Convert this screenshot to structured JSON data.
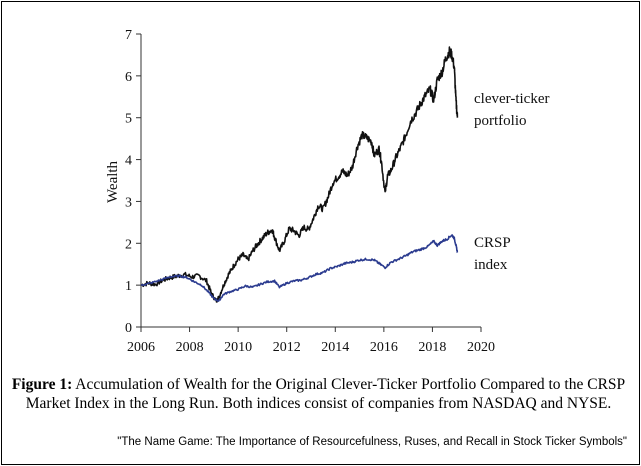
{
  "chart_data": {
    "type": "line",
    "ylabel": "Wealth",
    "xlabel": "",
    "xlim": [
      2006,
      2020
    ],
    "ylim": [
      0,
      7
    ],
    "x_ticks": [
      "2006",
      "2008",
      "2010",
      "2012",
      "2014",
      "2016",
      "2018",
      "2020"
    ],
    "y_ticks": [
      "0",
      "1",
      "2",
      "3",
      "4",
      "5",
      "6",
      "7"
    ],
    "grid": false,
    "legend": "inline labels at right end of each series",
    "series": [
      {
        "name": "clever-ticker portfolio",
        "color": "#111111",
        "points": [
          [
            2006.0,
            1.0
          ],
          [
            2006.3,
            1.05
          ],
          [
            2006.6,
            1.02
          ],
          [
            2006.9,
            1.12
          ],
          [
            2007.2,
            1.18
          ],
          [
            2007.5,
            1.22
          ],
          [
            2007.8,
            1.25
          ],
          [
            2008.1,
            1.2
          ],
          [
            2008.4,
            1.22
          ],
          [
            2008.7,
            1.1
          ],
          [
            2008.9,
            0.8
          ],
          [
            2009.1,
            0.62
          ],
          [
            2009.2,
            0.7
          ],
          [
            2009.4,
            1.0
          ],
          [
            2009.6,
            1.25
          ],
          [
            2009.8,
            1.45
          ],
          [
            2010.0,
            1.62
          ],
          [
            2010.2,
            1.72
          ],
          [
            2010.4,
            1.6
          ],
          [
            2010.6,
            1.82
          ],
          [
            2010.8,
            1.98
          ],
          [
            2011.0,
            2.12
          ],
          [
            2011.2,
            2.25
          ],
          [
            2011.4,
            2.32
          ],
          [
            2011.5,
            2.15
          ],
          [
            2011.7,
            1.82
          ],
          [
            2011.9,
            2.05
          ],
          [
            2012.1,
            2.35
          ],
          [
            2012.3,
            2.3
          ],
          [
            2012.5,
            2.18
          ],
          [
            2012.7,
            2.38
          ],
          [
            2012.9,
            2.33
          ],
          [
            2013.1,
            2.6
          ],
          [
            2013.3,
            2.9
          ],
          [
            2013.5,
            2.82
          ],
          [
            2013.7,
            3.1
          ],
          [
            2013.9,
            3.45
          ],
          [
            2014.1,
            3.58
          ],
          [
            2014.3,
            3.72
          ],
          [
            2014.5,
            3.62
          ],
          [
            2014.7,
            3.82
          ],
          [
            2014.9,
            4.3
          ],
          [
            2015.1,
            4.58
          ],
          [
            2015.3,
            4.52
          ],
          [
            2015.5,
            4.42
          ],
          [
            2015.6,
            4.1
          ],
          [
            2015.8,
            4.25
          ],
          [
            2015.9,
            3.95
          ],
          [
            2016.05,
            3.2
          ],
          [
            2016.15,
            3.6
          ],
          [
            2016.3,
            3.75
          ],
          [
            2016.5,
            4.05
          ],
          [
            2016.7,
            4.3
          ],
          [
            2016.9,
            4.58
          ],
          [
            2017.1,
            4.92
          ],
          [
            2017.3,
            5.1
          ],
          [
            2017.5,
            5.32
          ],
          [
            2017.7,
            5.52
          ],
          [
            2017.9,
            5.68
          ],
          [
            2018.05,
            5.42
          ],
          [
            2018.2,
            5.9
          ],
          [
            2018.4,
            6.1
          ],
          [
            2018.55,
            6.42
          ],
          [
            2018.7,
            6.58
          ],
          [
            2018.8,
            6.5
          ],
          [
            2018.9,
            6.2
          ],
          [
            2018.97,
            5.4
          ],
          [
            2019.03,
            5.0
          ]
        ]
      },
      {
        "name": "CRSP index",
        "color": "#2b3b8f",
        "points": [
          [
            2006.0,
            1.0
          ],
          [
            2006.4,
            1.05
          ],
          [
            2006.8,
            1.12
          ],
          [
            2007.2,
            1.2
          ],
          [
            2007.6,
            1.22
          ],
          [
            2007.9,
            1.18
          ],
          [
            2008.2,
            1.08
          ],
          [
            2008.5,
            1.0
          ],
          [
            2008.8,
            0.82
          ],
          [
            2009.0,
            0.68
          ],
          [
            2009.2,
            0.62
          ],
          [
            2009.4,
            0.78
          ],
          [
            2009.7,
            0.85
          ],
          [
            2010.0,
            0.9
          ],
          [
            2010.3,
            0.98
          ],
          [
            2010.6,
            0.95
          ],
          [
            2010.9,
            1.02
          ],
          [
            2011.2,
            1.08
          ],
          [
            2011.5,
            1.1
          ],
          [
            2011.7,
            0.95
          ],
          [
            2012.0,
            1.05
          ],
          [
            2012.3,
            1.1
          ],
          [
            2012.6,
            1.12
          ],
          [
            2012.9,
            1.18
          ],
          [
            2013.2,
            1.26
          ],
          [
            2013.5,
            1.3
          ],
          [
            2013.8,
            1.4
          ],
          [
            2014.1,
            1.45
          ],
          [
            2014.4,
            1.52
          ],
          [
            2014.7,
            1.55
          ],
          [
            2015.0,
            1.6
          ],
          [
            2015.3,
            1.62
          ],
          [
            2015.6,
            1.6
          ],
          [
            2015.8,
            1.52
          ],
          [
            2016.05,
            1.42
          ],
          [
            2016.3,
            1.55
          ],
          [
            2016.6,
            1.62
          ],
          [
            2016.9,
            1.7
          ],
          [
            2017.2,
            1.8
          ],
          [
            2017.5,
            1.85
          ],
          [
            2017.8,
            1.92
          ],
          [
            2018.05,
            2.05
          ],
          [
            2018.2,
            1.95
          ],
          [
            2018.4,
            2.05
          ],
          [
            2018.6,
            2.1
          ],
          [
            2018.8,
            2.2
          ],
          [
            2018.9,
            2.12
          ],
          [
            2018.97,
            1.95
          ],
          [
            2019.03,
            1.78
          ]
        ]
      }
    ],
    "annotations": [
      {
        "series": "clever-ticker portfolio",
        "lines": [
          "clever-ticker",
          "portfolio"
        ]
      },
      {
        "series": "CRSP index",
        "lines": [
          "CRSP",
          "index"
        ]
      }
    ]
  },
  "caption": {
    "label": "Figure 1:",
    "text": " Accumulation of Wealth for the Original Clever-Ticker Portfolio Compared to the CRSP Market Index in the Long Run. Both indices consist of companies from NASDAQ and NYSE."
  },
  "source": "\"The Name Game: The Importance of Resourcefulness, Ruses, and Recall in Stock Ticker Symbols\""
}
